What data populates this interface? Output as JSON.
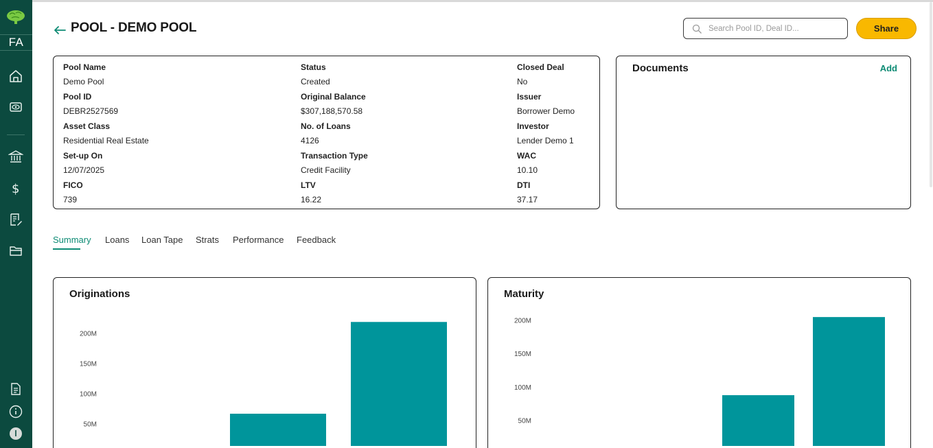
{
  "sidebar": {
    "initials": "FA",
    "icons": [
      "brain-logo-icon",
      "home-icon",
      "eye-icon",
      "bank-icon",
      "dollar-icon",
      "document-edit-icon",
      "folder-icon",
      "file-icon",
      "info-icon",
      "user-avatar-icon"
    ]
  },
  "header": {
    "title": "POOL - DEMO POOL",
    "search_placeholder": "Search Pool ID, Deal ID...",
    "share_label": "Share"
  },
  "info": {
    "rows": [
      {
        "c1_label": "Pool Name",
        "c1_value": "Demo Pool",
        "c2_label": "Status",
        "c2_value": "Created",
        "c3_label": "Closed Deal",
        "c3_value": "No"
      },
      {
        "c1_label": "Pool ID",
        "c1_value": "DEBR2527569",
        "c2_label": "Original Balance",
        "c2_value": "$307,188,570.58",
        "c3_label": "Issuer",
        "c3_value": "Borrower Demo"
      },
      {
        "c1_label": "Asset Class",
        "c1_value": "Residential Real Estate",
        "c2_label": "No. of Loans",
        "c2_value": "4126",
        "c3_label": "Investor",
        "c3_value": "Lender Demo 1"
      },
      {
        "c1_label": "Set-up On",
        "c1_value": "12/07/2025",
        "c2_label": "Transaction Type",
        "c2_value": "Credit Facility",
        "c3_label": "WAC",
        "c3_value": "10.10"
      },
      {
        "c1_label": "FICO",
        "c1_value": "739",
        "c2_label": "LTV",
        "c2_value": "16.22",
        "c3_label": "DTI",
        "c3_value": "37.17"
      }
    ]
  },
  "documents": {
    "title": "Documents",
    "add_label": "Add"
  },
  "tabs": [
    {
      "label": "Summary",
      "active": true
    },
    {
      "label": "Loans",
      "active": false
    },
    {
      "label": "Loan Tape",
      "active": false
    },
    {
      "label": "Strats",
      "active": false
    },
    {
      "label": "Performance",
      "active": false
    },
    {
      "label": "Feedback",
      "active": false
    }
  ],
  "colors": {
    "sidebar": "#0c4a3f",
    "accent": "#0d8b74",
    "share": "#f9b800",
    "bar": "#00959b"
  },
  "chart_data": [
    {
      "type": "bar",
      "title": "Originations",
      "categories": [
        "",
        "",
        ""
      ],
      "values": [
        0,
        67000000,
        219000000
      ],
      "yticks": [
        "50M",
        "100M",
        "150M",
        "200M"
      ],
      "ytick_values": [
        50000000,
        100000000,
        150000000,
        200000000
      ]
    },
    {
      "type": "bar",
      "title": "Maturity",
      "categories": [
        "",
        "",
        ""
      ],
      "values": [
        0,
        88000000,
        205000000
      ],
      "yticks": [
        "50M",
        "100M",
        "150M",
        "200M"
      ],
      "ytick_values": [
        50000000,
        100000000,
        150000000,
        200000000
      ]
    }
  ]
}
